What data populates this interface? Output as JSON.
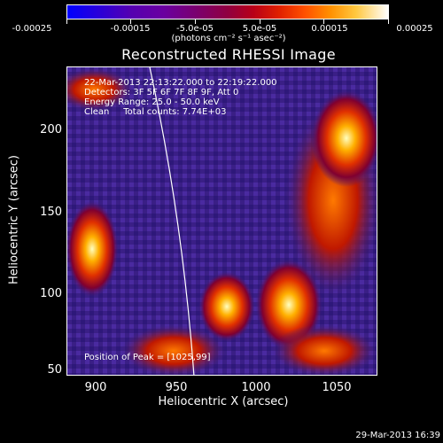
{
  "colorbar": {
    "ticks": [
      "-0.00025",
      "-0.00015",
      "-5.0e-05",
      "5.0e-05",
      "0.00015",
      "0.00025"
    ],
    "units": "(photons cm⁻² s⁻¹ asec⁻²)",
    "min": -0.00025,
    "max": 0.00025
  },
  "plot": {
    "title": "Reconstructed RHESSI Image",
    "annotations": {
      "time": "22-Mar-2013 22:13:22.000 to 22:19:22.000",
      "detectors": "Detectors: 3F 5F 6F 7F 8F 9F, Att 0",
      "energy": "Energy Range: 25.0 - 50.0 keV",
      "clean": "Clean     Total counts: 7.74E+03",
      "peak": "Position of Peak = [1025,99]"
    },
    "xlabel": "Heliocentric X (arcsec)",
    "ylabel": "Heliocentric Y (arcsec)",
    "xticks": [
      "900",
      "950",
      "1000",
      "1050"
    ],
    "yticks": [
      "200",
      "150",
      "100",
      "50"
    ]
  },
  "timestamp": "29-Mar-2013 16:39",
  "colors": {
    "background": "#000000",
    "text": "#ffffff",
    "limb": "#ffffff"
  }
}
